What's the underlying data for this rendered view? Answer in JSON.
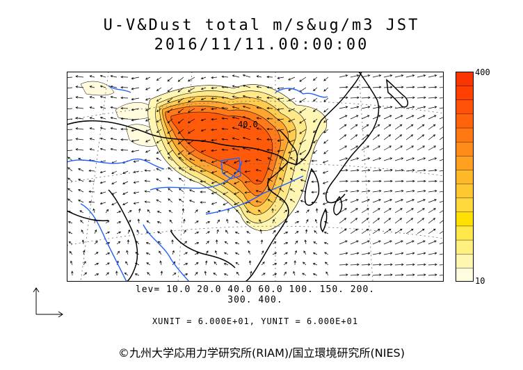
{
  "title_line1": "U-V&Dust total m/s&ug/m3 JST",
  "title_line2": "2016/11/11.00:00:00",
  "contour_label": "40.0",
  "colorbar": {
    "max_label": "400",
    "min_label": "10",
    "colors": [
      "#fffce0",
      "#fff7b0",
      "#fff080",
      "#ffe84a",
      "#ffe000",
      "#ffd83a",
      "#ffc830",
      "#ffb828",
      "#ffa020",
      "#ff8c18",
      "#ff7812",
      "#ff640c",
      "#ff5208",
      "#ff4000",
      "#f83400"
    ]
  },
  "levels_line1": "lev= 10.0 20.0 40.0 60.0 100. 150. 200.",
  "levels_line2": "300. 400.",
  "units_text": "XUNIT = 6.000E+01, YUNIT = 6.000E+01",
  "copyright": "©九州大学応用力学研究所(RIAM)/国立環境研究所(NIES)",
  "colors": {
    "coast": "#000000",
    "river": "#1f5fff",
    "grid": "#666666"
  }
}
